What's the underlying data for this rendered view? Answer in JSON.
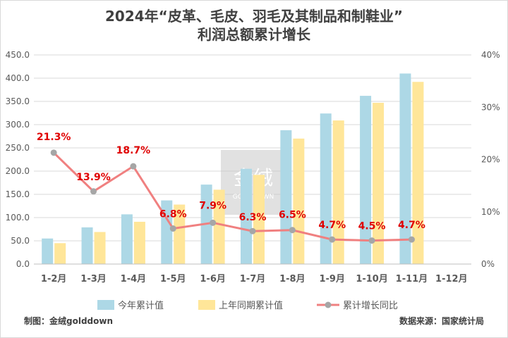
{
  "title_line1": "2024年“皮革、毛皮、羽毛及其制品和制鞋业”",
  "title_line2": "利润总额累计增长",
  "footer_left": "制图：金绒golddown",
  "footer_right": "数据来源：国家统计局",
  "watermark": {
    "text": "金绒",
    "subtext": "GOLD DOWN"
  },
  "colors": {
    "current": "#add8e6",
    "last": "#ffe699",
    "growth": "#f08080",
    "growth_marker": "#a6a6a6",
    "label_red": "#e00000",
    "axis_text": "#595959",
    "grid": "#d9d9d9"
  },
  "chart_data": {
    "type": "bar",
    "categories": [
      "1-2月",
      "1-3月",
      "1-4月",
      "1-5月",
      "1-6月",
      "1-7月",
      "1-8月",
      "1-9月",
      "1-10月",
      "1-11月",
      "1-12月"
    ],
    "series": [
      {
        "name": "今年累计值",
        "values": [
          55,
          79,
          107,
          137,
          171,
          205,
          288,
          324,
          362,
          410,
          null
        ]
      },
      {
        "name": "上年同期累计值",
        "values": [
          45,
          69,
          91,
          128,
          160,
          192,
          270,
          309,
          347,
          392,
          null
        ]
      }
    ],
    "line_series": {
      "name": "累计增长同比",
      "values": [
        21.3,
        13.9,
        18.7,
        6.8,
        7.9,
        6.3,
        6.5,
        4.7,
        4.5,
        4.7,
        null
      ],
      "labels": [
        "21.3%",
        "13.9%",
        "18.7%",
        "6.8%",
        "7.9%",
        "6.3%",
        "6.5%",
        "4.7%",
        "4.5%",
        "4.7%",
        ""
      ]
    },
    "ylim": [
      0,
      450
    ],
    "yticks": [
      "0.0",
      "50.0",
      "100.0",
      "150.0",
      "200.0",
      "250.0",
      "300.0",
      "350.0",
      "400.0",
      "450.0"
    ],
    "y2lim": [
      0,
      40
    ],
    "y2ticks": [
      "0%",
      "10%",
      "20%",
      "30%",
      "40%"
    ],
    "grid": true,
    "legend_position": "bottom"
  }
}
